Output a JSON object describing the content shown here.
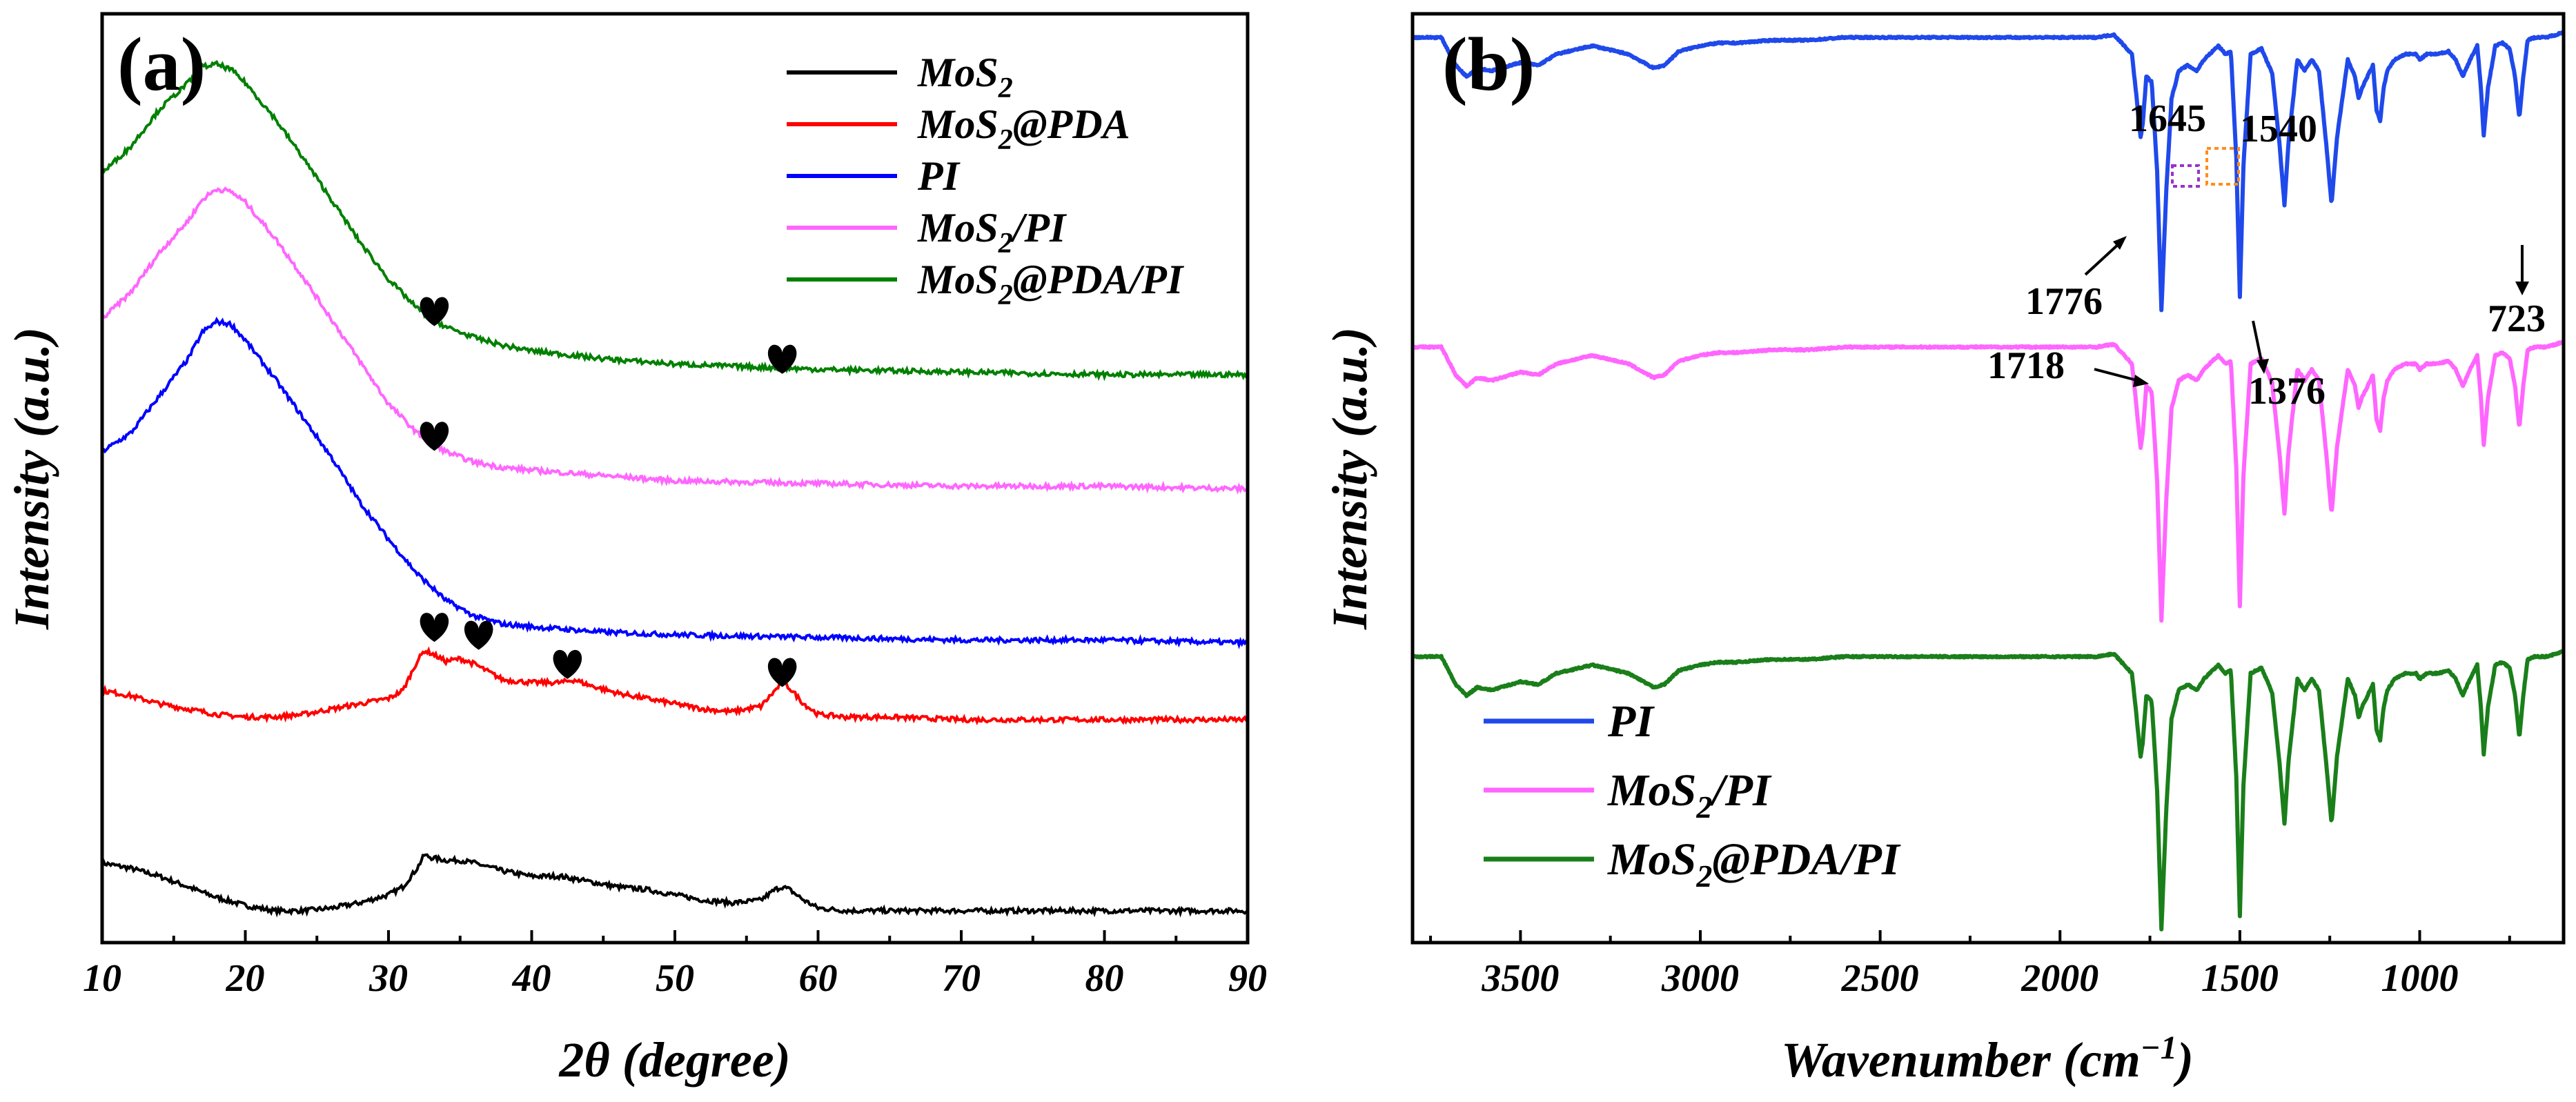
{
  "chart_data": [
    {
      "panel_label": "(a)",
      "type": "line",
      "xlabel_prefix": "2",
      "xlabel_theta": "θ",
      "xlabel_suffix": " (degree)",
      "ylabel": "Intensity (a.u.)",
      "xlim": [
        10,
        90
      ],
      "xticks": [
        "10",
        "20",
        "30",
        "40",
        "50",
        "60",
        "70",
        "80",
        "90"
      ],
      "yticks": [],
      "legend_position": "top-right",
      "series": [
        {
          "name": "MoS2",
          "legend_main": "MoS",
          "legend_sub": "2",
          "legend_rest": "",
          "color": "#000000",
          "x": [
            10,
            12,
            14,
            16,
            18,
            20,
            22,
            24,
            26,
            28,
            30,
            31,
            32,
            32.5,
            33,
            34,
            35,
            36,
            38,
            40,
            42,
            44,
            46,
            48,
            50,
            52,
            54,
            56,
            57,
            57.5,
            58,
            59,
            60,
            62,
            65,
            70,
            75,
            80,
            85,
            90
          ],
          "y": [
            0.3,
            0.28,
            0.25,
            0.21,
            0.17,
            0.14,
            0.12,
            0.12,
            0.13,
            0.15,
            0.18,
            0.21,
            0.28,
            0.33,
            0.32,
            0.31,
            0.31,
            0.3,
            0.27,
            0.25,
            0.25,
            0.23,
            0.21,
            0.2,
            0.18,
            0.16,
            0.15,
            0.16,
            0.2,
            0.21,
            0.2,
            0.16,
            0.13,
            0.12,
            0.12,
            0.12,
            0.12,
            0.12,
            0.12,
            0.12
          ]
        },
        {
          "name": "MoS2@PDA",
          "legend_main": "MoS",
          "legend_sub": "2",
          "legend_rest": "@PDA",
          "color": "#ff0000",
          "x": [
            10,
            12,
            14,
            16,
            18,
            20,
            22,
            24,
            26,
            28,
            30,
            31,
            32,
            32.5,
            33,
            34,
            35,
            36,
            37,
            38,
            40,
            42,
            43,
            44,
            46,
            48,
            50,
            52,
            54,
            56,
            57,
            57.5,
            58,
            59,
            60,
            62,
            65,
            70,
            75,
            80,
            85,
            90
          ],
          "y": [
            0.95,
            0.93,
            0.9,
            0.88,
            0.86,
            0.85,
            0.85,
            0.86,
            0.88,
            0.9,
            0.92,
            0.95,
            1.06,
            1.1,
            1.09,
            1.06,
            1.07,
            1.05,
            1.02,
            0.99,
            0.98,
            0.98,
            0.99,
            0.97,
            0.94,
            0.92,
            0.9,
            0.88,
            0.87,
            0.89,
            0.95,
            0.98,
            0.96,
            0.9,
            0.86,
            0.85,
            0.85,
            0.84,
            0.84,
            0.84,
            0.84,
            0.84
          ]
        },
        {
          "name": "PI",
          "legend_main": "PI",
          "legend_sub": "",
          "legend_rest": "",
          "color": "#0000ff",
          "x": [
            10,
            12,
            14,
            16,
            17,
            18,
            19,
            20,
            22,
            24,
            26,
            28,
            30,
            32,
            34,
            36,
            38,
            40,
            45,
            50,
            60,
            70,
            80,
            90
          ],
          "y": [
            1.85,
            1.92,
            2.06,
            2.2,
            2.3,
            2.34,
            2.33,
            2.27,
            2.13,
            1.98,
            1.83,
            1.66,
            1.52,
            1.39,
            1.29,
            1.23,
            1.2,
            1.19,
            1.17,
            1.16,
            1.15,
            1.14,
            1.14,
            1.13
          ]
        },
        {
          "name": "MoS2/PI",
          "legend_main": "MoS",
          "legend_sub": "2",
          "legend_rest": "/PI",
          "color": "#ff66ff",
          "x": [
            10,
            12,
            14,
            16,
            17,
            18,
            19,
            20,
            22,
            24,
            26,
            28,
            30,
            32,
            34,
            36,
            38,
            40,
            45,
            50,
            60,
            70,
            80,
            90
          ],
          "y": [
            2.35,
            2.45,
            2.6,
            2.72,
            2.8,
            2.84,
            2.83,
            2.79,
            2.66,
            2.51,
            2.35,
            2.19,
            2.03,
            1.92,
            1.85,
            1.81,
            1.79,
            1.78,
            1.76,
            1.74,
            1.73,
            1.72,
            1.72,
            1.71
          ]
        },
        {
          "name": "MoS2@PDA/PI",
          "legend_main": "MoS",
          "legend_sub": "2",
          "legend_rest": "@PDA/PI",
          "color": "#008000",
          "x": [
            10,
            12,
            14,
            16,
            17,
            18,
            19,
            20,
            22,
            24,
            26,
            28,
            30,
            32,
            34,
            36,
            38,
            40,
            45,
            50,
            55,
            60,
            70,
            80,
            90
          ],
          "y": [
            2.9,
            3.0,
            3.14,
            3.24,
            3.3,
            3.31,
            3.29,
            3.24,
            3.11,
            2.96,
            2.8,
            2.64,
            2.5,
            2.39,
            2.32,
            2.28,
            2.25,
            2.23,
            2.2,
            2.18,
            2.17,
            2.16,
            2.15,
            2.14,
            2.14
          ]
        }
      ],
      "ylim": [
        0.0,
        3.5
      ],
      "annotations": [
        {
          "label": "heart",
          "x": 33.2,
          "y": 2.37
        },
        {
          "label": "heart",
          "x": 57.5,
          "y": 2.19
        },
        {
          "label": "heart",
          "x": 33.2,
          "y": 1.9
        },
        {
          "label": "heart",
          "x": 33.2,
          "y": 1.18
        },
        {
          "label": "heart",
          "x": 36.3,
          "y": 1.15
        },
        {
          "label": "heart",
          "x": 42.5,
          "y": 1.04
        },
        {
          "label": "heart",
          "x": 57.5,
          "y": 1.01
        }
      ]
    },
    {
      "panel_label": "(b)",
      "type": "line",
      "xlabel_main": "Wavenumber (cm",
      "xlabel_sup": "−1",
      "xlabel_end": ")",
      "ylabel": "Intensity (a.u.)",
      "xlim": [
        3800,
        600
      ],
      "xticks": [
        "3500",
        "3000",
        "2500",
        "2000",
        "1500",
        "1000"
      ],
      "xtick_values": [
        3500,
        3000,
        2500,
        2000,
        1500,
        1000
      ],
      "yticks": [],
      "legend_position": "bottom-left",
      "series": [
        {
          "name": "PI",
          "legend_main": "PI",
          "legend_sub": "",
          "legend_rest": "",
          "color": "#1f49ea",
          "offset": 2.4
        },
        {
          "name": "MoS2/PI",
          "legend_main": "MoS",
          "legend_sub": "2",
          "legend_rest": "/PI",
          "color": "#ff66ff",
          "offset": 1.2
        },
        {
          "name": "MoS2@PDA/PI",
          "legend_main": "MoS",
          "legend_sub": "2",
          "legend_rest": "@PDA/PI",
          "color": "#1a7f1a",
          "offset": 0.0
        }
      ],
      "spectrum_x": [
        3800,
        3720,
        3680,
        3650,
        3620,
        3580,
        3500,
        3450,
        3400,
        3300,
        3200,
        3130,
        3100,
        3060,
        3000,
        2950,
        2900,
        2800,
        2700,
        2600,
        2500,
        2400,
        2300,
        2200,
        2100,
        2000,
        1900,
        1850,
        1800,
        1790,
        1780,
        1776,
        1770,
        1760,
        1745,
        1730,
        1718,
        1705,
        1690,
        1670,
        1645,
        1620,
        1600,
        1560,
        1540,
        1525,
        1510,
        1500,
        1490,
        1470,
        1440,
        1410,
        1390,
        1376,
        1365,
        1340,
        1320,
        1300,
        1280,
        1260,
        1245,
        1230,
        1200,
        1180,
        1170,
        1160,
        1130,
        1120,
        1110,
        1100,
        1090,
        1070,
        1040,
        1010,
        1000,
        980,
        950,
        920,
        900,
        880,
        860,
        840,
        830,
        822,
        810,
        790,
        770,
        750,
        735,
        723,
        712,
        700,
        680,
        650,
        620,
        600
      ],
      "spectrum_y": [
        0.98,
        0.98,
        0.88,
        0.84,
        0.87,
        0.86,
        0.89,
        0.88,
        0.92,
        0.95,
        0.92,
        0.87,
        0.88,
        0.93,
        0.95,
        0.96,
        0.96,
        0.97,
        0.97,
        0.98,
        0.98,
        0.98,
        0.98,
        0.98,
        0.98,
        0.98,
        0.98,
        0.99,
        0.92,
        0.8,
        0.67,
        0.62,
        0.67,
        0.84,
        0.82,
        0.5,
        0.0,
        0.42,
        0.76,
        0.86,
        0.88,
        0.86,
        0.9,
        0.95,
        0.92,
        0.93,
        0.55,
        0.05,
        0.52,
        0.92,
        0.94,
        0.85,
        0.6,
        0.38,
        0.6,
        0.9,
        0.86,
        0.9,
        0.86,
        0.6,
        0.38,
        0.62,
        0.9,
        0.84,
        0.76,
        0.8,
        0.88,
        0.72,
        0.68,
        0.8,
        0.86,
        0.9,
        0.92,
        0.92,
        0.9,
        0.92,
        0.92,
        0.93,
        0.9,
        0.84,
        0.9,
        0.95,
        0.8,
        0.63,
        0.8,
        0.95,
        0.96,
        0.94,
        0.84,
        0.69,
        0.84,
        0.97,
        0.98,
        0.98,
        0.99,
        1.0
      ],
      "ylim": [
        -0.05,
        3.55
      ],
      "annotations": [
        {
          "label": "1645",
          "color": "#9932cc"
        },
        {
          "label": "1540",
          "color": "#ff8c1a"
        },
        {
          "label": "1776",
          "color": "#000000"
        },
        {
          "label": "1718",
          "color": "#000000"
        },
        {
          "label": "1376",
          "color": "#000000"
        },
        {
          "label": "723",
          "color": "#000000"
        }
      ]
    }
  ]
}
